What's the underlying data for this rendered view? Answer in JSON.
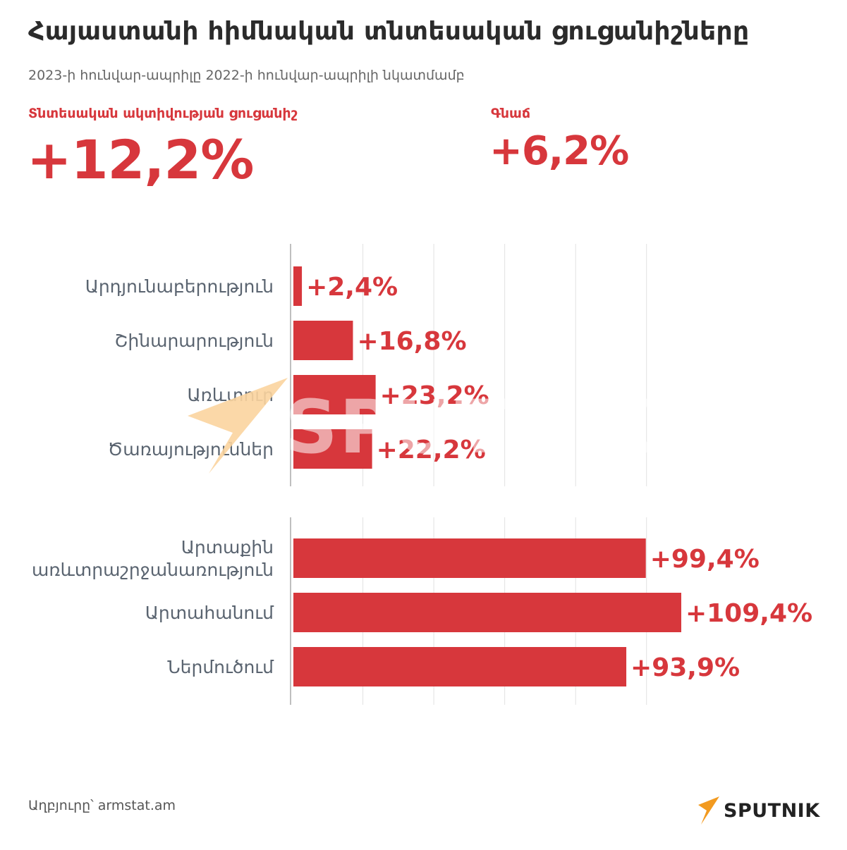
{
  "header": {
    "title": "Հայաստանի հիմնական տնտեսական ցուցանիշները",
    "subtitle": "2023-ի հունվար-ապրիլը 2022-ի հունվար-ապրիլի նկատմամբ"
  },
  "kpis": [
    {
      "label": "Տնտեսական ակտիվության ցուցանիշ",
      "value": "+12,2%"
    },
    {
      "label": "Գնաճ",
      "value": "+6,2%"
    }
  ],
  "colors": {
    "accent": "#d7373c",
    "bar": "#d7373c",
    "grid": "#e2e2e2",
    "axis": "#bfbfbf",
    "category_text": "#5a6470",
    "watermark_orange": "#fbd49e"
  },
  "chart_data": [
    {
      "type": "bar",
      "orientation": "horizontal",
      "categories": [
        [
          "Արդյունաբերություն"
        ],
        [
          "Շինարարություն"
        ],
        [
          "Առևտուր"
        ],
        [
          "Ծառայություններ"
        ]
      ],
      "values": [
        2.4,
        16.8,
        23.2,
        22.2
      ],
      "labels": [
        "+2,4%",
        "+16,8%",
        "+23,2%",
        "+22,2%"
      ],
      "xlim": [
        0,
        110
      ],
      "grid": true
    },
    {
      "type": "bar",
      "orientation": "horizontal",
      "categories": [
        [
          "Արտաքին",
          "առևտրաշրջանառություն"
        ],
        [
          "Արտահանում"
        ],
        [
          "Ներմուծում"
        ]
      ],
      "values": [
        99.4,
        109.4,
        93.9
      ],
      "labels": [
        "+99,4%",
        "+109,4%",
        "+93,9%"
      ],
      "xlim": [
        0,
        110
      ],
      "grid": true
    }
  ],
  "watermark": {
    "text": "SPUTNIK",
    "icon": "sputnik-arrow-icon"
  },
  "footer": {
    "source": "Աղբյուրը՝ armstat.am",
    "logo_text": "SPUTNIK",
    "logo_icon": "sputnik-arrow-icon"
  }
}
